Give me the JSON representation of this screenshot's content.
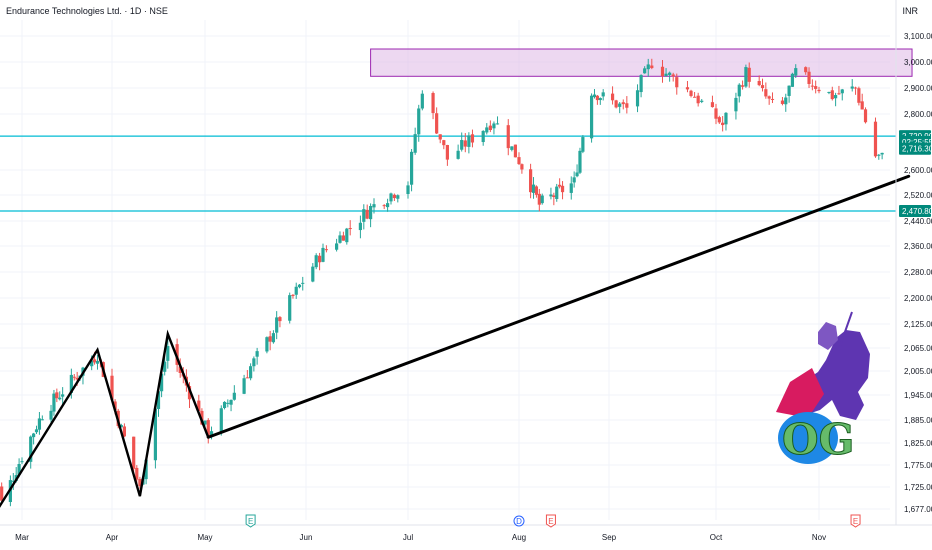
{
  "header": {
    "symbol_line": "Endurance Technologies Ltd. · 1D · NSE",
    "currency": "INR"
  },
  "colors": {
    "up": "#26a69a",
    "down": "#ef5350",
    "hline": "#00bcd4",
    "zone_fill": "#e1bee7",
    "zone_stroke": "#9c27b0",
    "trend": "#000000",
    "earnings": "#ef5350",
    "dividend": "#2962ff",
    "earnings_up": "#26a69a"
  },
  "chart_data": {
    "type": "candlestick",
    "x_labels": [
      "Mar",
      "Apr",
      "May",
      "Jun",
      "Jul",
      "Aug",
      "Sep",
      "Oct",
      "Nov"
    ],
    "y_ticks": [
      "3,100.00",
      "3,000.00",
      "2,900.00",
      "2,800.00",
      "2,600.00",
      "2,520.00",
      "2,440.00",
      "2,360.00",
      "2,280.00",
      "2,200.00",
      "2,125.00",
      "2,065.00",
      "2,005.00",
      "1,945.00",
      "1,885.00",
      "1,825.00",
      "1,775.00",
      "1,725.00",
      "1,677.00"
    ],
    "price_tags": [
      {
        "label": "2,720.90",
        "value": 2720.9,
        "kind": "last"
      },
      {
        "label": "02:25:55",
        "value": 2700,
        "kind": "timer"
      },
      {
        "label": "2,716.30",
        "value": 2676,
        "kind": "prev"
      },
      {
        "label": "2,470.80",
        "value": 2470.8,
        "kind": "level"
      }
    ],
    "horizontal_levels": [
      2720.9,
      2470.8
    ],
    "resistance_zone": {
      "top": 3050,
      "bottom": 2945,
      "from": "2024-06-20",
      "to": "2024-11-29"
    },
    "trendline": [
      {
        "date": "2024-05-02",
        "price": 1840
      },
      {
        "date": "2024-11-28",
        "price": 2580
      }
    ],
    "zigzag": [
      {
        "date": "2024-02-22",
        "price": 1680
      },
      {
        "date": "2024-03-27",
        "price": 2060
      },
      {
        "date": "2024-04-10",
        "price": 1705
      },
      {
        "date": "2024-04-19",
        "price": 2100
      },
      {
        "date": "2024-05-02",
        "price": 1840
      }
    ],
    "events": [
      {
        "label": "E",
        "type": "earnings",
        "date": "2024-05-15"
      },
      {
        "label": "D",
        "type": "dividend",
        "date": "2024-08-01"
      },
      {
        "label": "E",
        "type": "earnings",
        "date": "2024-08-12"
      },
      {
        "label": "E",
        "type": "earnings",
        "date": "2024-11-12"
      }
    ],
    "anchors": [
      {
        "date": "2024-02-20",
        "price": 1800
      },
      {
        "date": "2024-02-23",
        "price": 1690
      },
      {
        "date": "2024-03-08",
        "price": 1900
      },
      {
        "date": "2024-03-27",
        "price": 2050
      },
      {
        "date": "2024-04-10",
        "price": 1720
      },
      {
        "date": "2024-04-19",
        "price": 2070
      },
      {
        "date": "2024-05-02",
        "price": 1850
      },
      {
        "date": "2024-05-20",
        "price": 2080
      },
      {
        "date": "2024-06-05",
        "price": 2330
      },
      {
        "date": "2024-06-20",
        "price": 2480
      },
      {
        "date": "2024-07-01",
        "price": 2560
      },
      {
        "date": "2024-07-05",
        "price": 2900
      },
      {
        "date": "2024-07-12",
        "price": 2640
      },
      {
        "date": "2024-07-25",
        "price": 2780
      },
      {
        "date": "2024-08-08",
        "price": 2490
      },
      {
        "date": "2024-08-20",
        "price": 2560
      },
      {
        "date": "2024-08-26",
        "price": 2890
      },
      {
        "date": "2024-09-06",
        "price": 2820
      },
      {
        "date": "2024-09-13",
        "price": 3000
      },
      {
        "date": "2024-09-25",
        "price": 2870
      },
      {
        "date": "2024-10-03",
        "price": 2760
      },
      {
        "date": "2024-10-10",
        "price": 2960
      },
      {
        "date": "2024-10-20",
        "price": 2800
      },
      {
        "date": "2024-10-25",
        "price": 2960
      },
      {
        "date": "2024-11-05",
        "price": 2870
      },
      {
        "date": "2024-11-12",
        "price": 2900
      },
      {
        "date": "2024-11-18",
        "price": 2650
      },
      {
        "date": "2024-11-25",
        "price": 2630
      },
      {
        "date": "2024-11-28",
        "price": 2720
      }
    ]
  },
  "logo": {
    "text": "OG",
    "name": "knight-logo"
  }
}
